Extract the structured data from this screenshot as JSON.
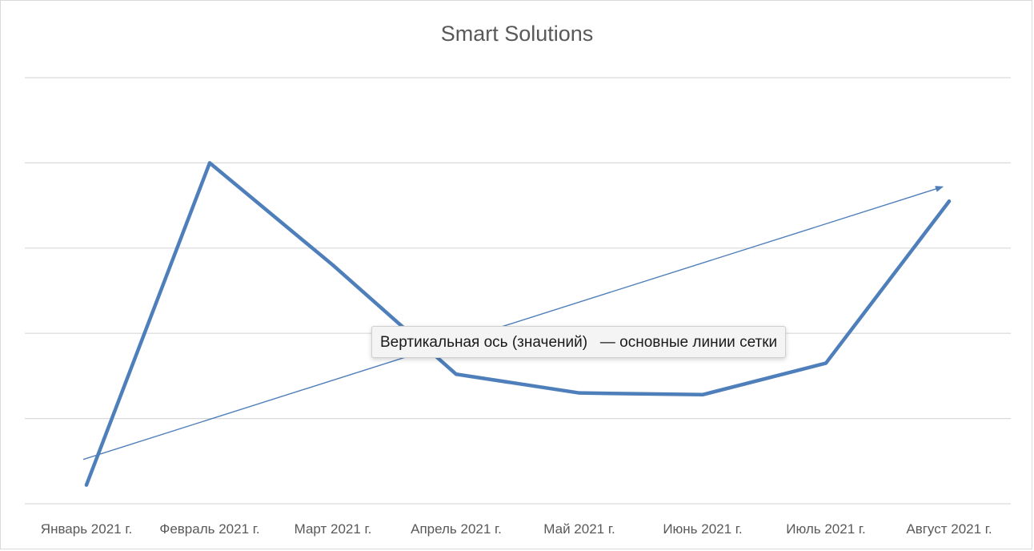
{
  "chart_data": {
    "type": "line",
    "title": "Smart Solutions",
    "xlabel": "",
    "ylabel": "",
    "categories": [
      "Январь 2021 г.",
      "Февраль 2021 г.",
      "Март 2021 г.",
      "Апрель 2021 г.",
      "Май 2021 г.",
      "Июнь 2021 г.",
      "Июль 2021 г.",
      "Август 2021 г."
    ],
    "series": [
      {
        "values": [
          0.22,
          4.0,
          2.8,
          1.52,
          1.3,
          1.28,
          1.65,
          3.55
        ]
      }
    ],
    "trendline": {
      "type": "linear",
      "start": 0.52,
      "end": 3.72
    },
    "ylim": [
      0,
      5
    ],
    "gridlines": true,
    "y_tick_labels_visible": false,
    "colors": {
      "series": "#4f7fbb",
      "trendline": "#4f7fbb",
      "grid": "#d9d9d9",
      "text": "#595959"
    }
  },
  "tooltip": {
    "text": "Вертикальная ось (значений)   — основные линии сетки"
  }
}
